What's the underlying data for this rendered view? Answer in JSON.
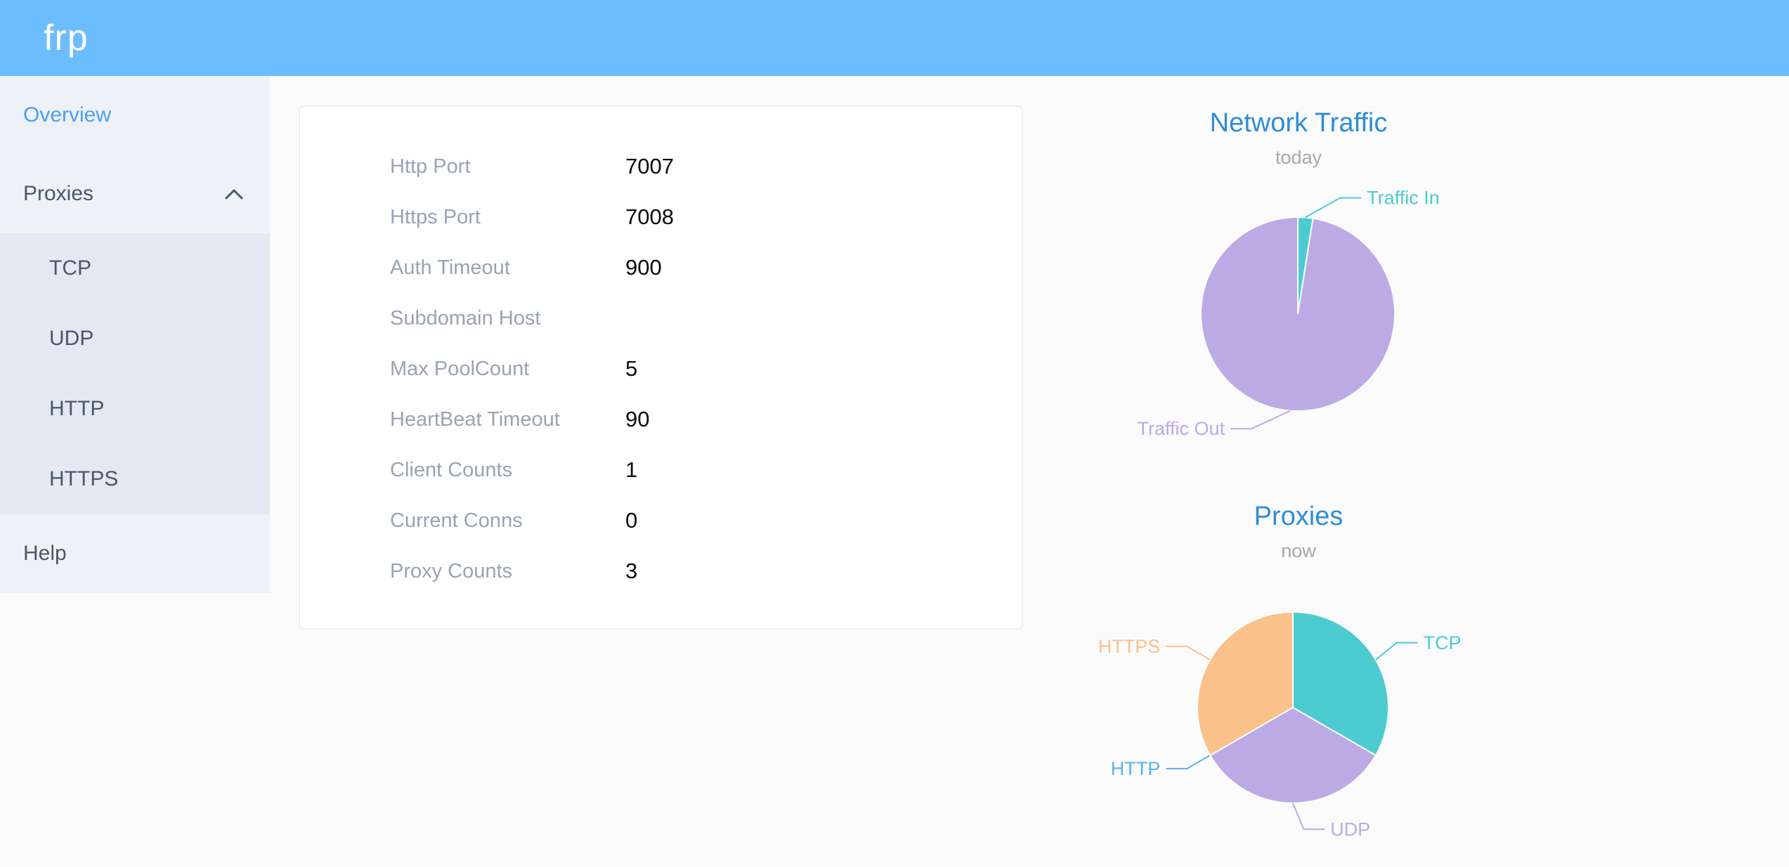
{
  "header": {
    "logo": "frp"
  },
  "theme": {
    "header_bg": "#6cbdfd",
    "logo_text": "#ffffff",
    "page_bg": "#fbfbfc",
    "sidebar_bg": "#eef1f6",
    "submenu_bg": "#e4e8f1",
    "menu_text": "#48576a",
    "active_text": "#4a9ff8",
    "card_border": "#eceff5",
    "label_gray": "#99a3b2",
    "value_text": "#0b0b0b",
    "chart_title": "#2e8dd6",
    "subtitle_gray": "#a8a8a8"
  },
  "sidebar": {
    "items": [
      {
        "label": "Overview",
        "active": true
      },
      {
        "label": "Proxies",
        "expanded": true,
        "children": [
          "TCP",
          "UDP",
          "HTTP",
          "HTTPS"
        ]
      },
      {
        "label": "Help",
        "active": false
      }
    ]
  },
  "server_info": {
    "rows": [
      {
        "label": "Http Port",
        "value": "7007"
      },
      {
        "label": "Https Port",
        "value": "7008"
      },
      {
        "label": "Auth Timeout",
        "value": "900"
      },
      {
        "label": "Subdomain Host",
        "value": ""
      },
      {
        "label": "Max PoolCount",
        "value": "5"
      },
      {
        "label": "HeartBeat Timeout",
        "value": "90"
      },
      {
        "label": "Client Counts",
        "value": "1"
      },
      {
        "label": "Current Conns",
        "value": "0"
      },
      {
        "label": "Proxy Counts",
        "value": "3"
      }
    ]
  },
  "chart_data": [
    {
      "type": "pie",
      "title": "Network Traffic",
      "subtitle": "today",
      "legend_position": "none",
      "labels_on": "callout-lines",
      "slices": [
        {
          "label": "Traffic In",
          "percent": 2.5,
          "color": "#4cccd0",
          "label_angle": 20
        },
        {
          "label": "Traffic Out",
          "percent": 97.5,
          "color": "#bcaae4",
          "label_angle": 202
        }
      ]
    },
    {
      "type": "pie",
      "title": "Proxies",
      "subtitle": "now",
      "legend_position": "none",
      "labels_on": "callout-lines",
      "slices": [
        {
          "label": "TCP",
          "value": 1,
          "percent": 33.33,
          "color": "#4cccd0",
          "label_angle": 58
        },
        {
          "label": "UDP",
          "value": 1,
          "percent": 33.33,
          "color": "#bcaae4",
          "label_angle": 175
        },
        {
          "label": "HTTP",
          "value": 0,
          "percent": 0,
          "color": "#5ab1ef",
          "label_angle": 240
        },
        {
          "label": "HTTPS",
          "value": 1,
          "percent": 33.33,
          "color": "#fac18a",
          "label_angle": 300
        }
      ]
    }
  ]
}
